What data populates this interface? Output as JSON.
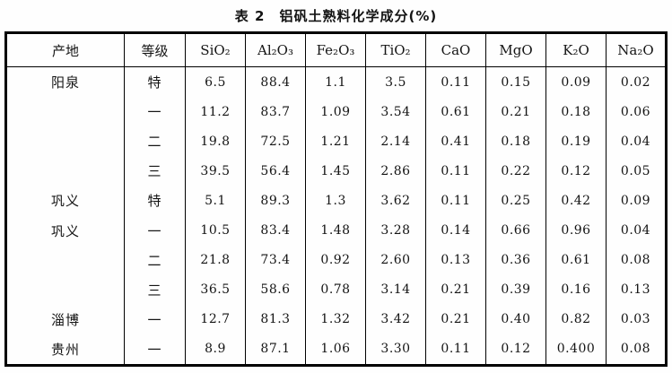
{
  "title": "表 2　铝矾土熟料化学成分(%)",
  "table": {
    "headers": [
      "产地",
      "等级",
      "SiO₂",
      "Al₂O₃",
      "Fe₂O₃",
      "TiO₂",
      "CaO",
      "MgO",
      "K₂O",
      "Na₂O"
    ],
    "rows": [
      [
        "阳泉",
        "特",
        "6.5",
        "88.4",
        "1.1",
        "3.5",
        "0.11",
        "0.15",
        "0.09",
        "0.02"
      ],
      [
        "",
        "一",
        "11.2",
        "83.7",
        "1.09",
        "3.54",
        "0.61",
        "0.21",
        "0.18",
        "0.06"
      ],
      [
        "",
        "二",
        "19.8",
        "72.5",
        "1.21",
        "2.14",
        "0.41",
        "0.18",
        "0.19",
        "0.04"
      ],
      [
        "",
        "三",
        "39.5",
        "56.4",
        "1.45",
        "2.86",
        "0.11",
        "0.22",
        "0.12",
        "0.05"
      ],
      [
        "巩义",
        "特",
        "5.1",
        "89.3",
        "1.3",
        "3.62",
        "0.11",
        "0.25",
        "0.42",
        "0.09"
      ],
      [
        "巩义",
        "一",
        "10.5",
        "83.4",
        "1.48",
        "3.28",
        "0.14",
        "0.66",
        "0.96",
        "0.04"
      ],
      [
        "",
        "二",
        "21.8",
        "73.4",
        "0.92",
        "2.60",
        "0.13",
        "0.36",
        "0.61",
        "0.08"
      ],
      [
        "",
        "三",
        "36.5",
        "58.6",
        "0.78",
        "3.14",
        "0.21",
        "0.39",
        "0.16",
        "0.13"
      ],
      [
        "淄博",
        "一",
        "12.7",
        "81.3",
        "1.32",
        "3.42",
        "0.21",
        "0.40",
        "0.82",
        "0.03"
      ],
      [
        "贵州",
        "一",
        "8.9",
        "87.1",
        "1.06",
        "3.30",
        "0.11",
        "0.12",
        "0.400",
        "0.08"
      ]
    ]
  }
}
